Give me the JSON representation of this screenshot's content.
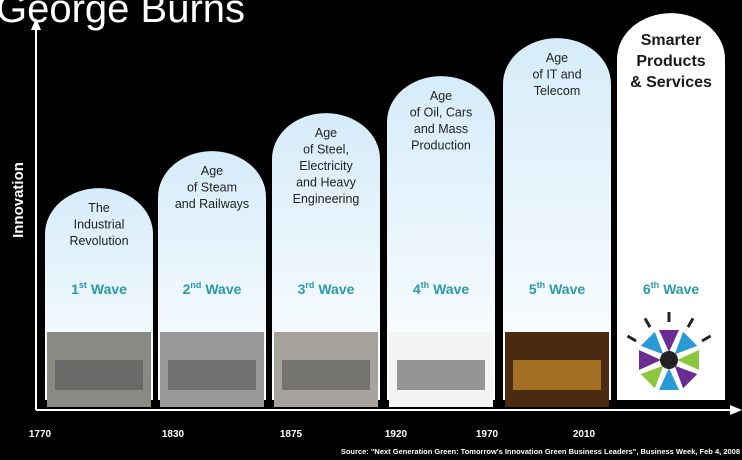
{
  "title": "George Burns",
  "y_axis_label": "Innovation",
  "waves": [
    {
      "lines": [
        "The",
        "Industrial",
        "Revolution"
      ],
      "num": "1",
      "sup": "st",
      "word": "Wave"
    },
    {
      "lines": [
        "Age",
        "of Steam",
        "and Railways"
      ],
      "num": "2",
      "sup": "nd",
      "word": "Wave"
    },
    {
      "lines": [
        "Age",
        "of Steel,",
        "Electricity",
        "and Heavy",
        "Engineering"
      ],
      "num": "3",
      "sup": "rd",
      "word": "Wave"
    },
    {
      "lines": [
        "Age",
        "of Oil, Cars",
        "and Mass",
        "Production"
      ],
      "num": "4",
      "sup": "th",
      "word": "Wave"
    },
    {
      "lines": [
        "Age",
        "of IT and",
        "Telecom"
      ],
      "num": "5",
      "sup": "th",
      "word": "Wave"
    },
    {
      "lines": [
        "Smarter",
        "Products",
        "& Services"
      ],
      "num": "6",
      "sup": "th",
      "word": "Wave"
    }
  ],
  "years": [
    "1770",
    "1830",
    "1875",
    "1920",
    "1970",
    "2010"
  ],
  "source": "Source:  \"Next Generation Green: Tomorrow's Innovation Green Business Leaders\", Business Week, Feb 4, 2008"
}
